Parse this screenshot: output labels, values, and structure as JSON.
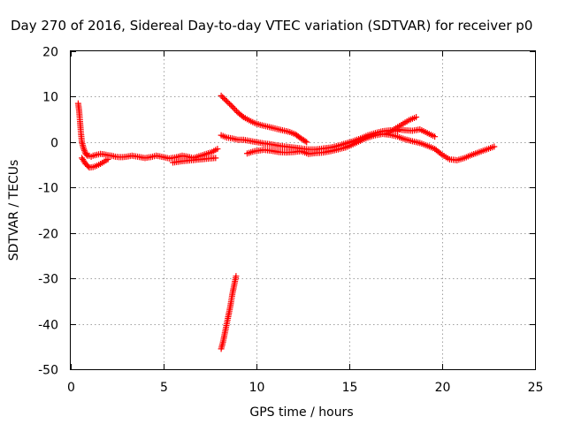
{
  "chart_data": {
    "type": "scatter",
    "title": "Day 270 of 2016, Sidereal Day-to-day VTEC variation (SDTVAR) for receiver p0",
    "xlabel": "GPS time / hours",
    "ylabel": "SDTVAR / TECUs",
    "xlim": [
      0,
      25
    ],
    "ylim": [
      -50,
      20
    ],
    "x_ticks": [
      "0",
      "5",
      "10",
      "15",
      "20",
      "25"
    ],
    "y_ticks": [
      "20",
      "10",
      "0",
      "-10",
      "-20",
      "-30",
      "-40",
      "-50"
    ],
    "grid": true,
    "marker": "plus",
    "color": "#ff0000",
    "series": [
      {
        "x": [
          0.4,
          0.45,
          0.5,
          0.55,
          0.6,
          0.7,
          0.8,
          0.9,
          1.0,
          1.1,
          1.2,
          1.4,
          1.6,
          1.8,
          2.0,
          2.2,
          2.4,
          2.6,
          2.8,
          3.0,
          3.3,
          3.6,
          4.0,
          4.3,
          4.6,
          5.0,
          5.3,
          5.6,
          6.0,
          6.3,
          6.6,
          7.0,
          7.3,
          7.6,
          7.9
        ],
        "y": [
          8.5,
          7.0,
          4.5,
          2.0,
          0.0,
          -1.5,
          -2.5,
          -3.0,
          -3.0,
          -3.2,
          -3.0,
          -2.8,
          -2.6,
          -2.7,
          -2.9,
          -3.0,
          -3.2,
          -3.3,
          -3.3,
          -3.2,
          -3.0,
          -3.2,
          -3.5,
          -3.3,
          -3.0,
          -3.3,
          -3.6,
          -3.4,
          -3.0,
          -3.2,
          -3.5,
          -3.0,
          -2.6,
          -2.2,
          -1.5
        ]
      },
      {
        "x": [
          0.6,
          0.8,
          1.0,
          1.2,
          1.4,
          1.6,
          1.8,
          2.0
        ],
        "y": [
          -3.5,
          -4.8,
          -5.6,
          -5.5,
          -5.2,
          -4.8,
          -4.3,
          -3.8
        ]
      },
      {
        "x": [
          5.5,
          6.0,
          6.5,
          7.0,
          7.5,
          7.8
        ],
        "y": [
          -4.5,
          -4.2,
          -4.0,
          -3.8,
          -3.6,
          -3.5
        ]
      },
      {
        "x": [
          8.1,
          8.4,
          8.7,
          9.0,
          9.3,
          9.6,
          9.9,
          10.2,
          10.6,
          11.0,
          11.4,
          11.8,
          12.1,
          12.4,
          12.7
        ],
        "y": [
          10.2,
          9.0,
          7.8,
          6.5,
          5.5,
          4.8,
          4.2,
          3.8,
          3.4,
          3.0,
          2.6,
          2.2,
          1.7,
          0.8,
          0.0
        ]
      },
      {
        "x": [
          8.1,
          8.4,
          8.7,
          9.0,
          9.3,
          9.6,
          10.0,
          10.4,
          10.8,
          11.2,
          11.6,
          12.0,
          12.4,
          12.8,
          13.2,
          13.6,
          14.0,
          14.4,
          14.8,
          15.2,
          15.6,
          16.0,
          16.4,
          16.8,
          17.2,
          17.6
        ],
        "y": [
          1.5,
          1.0,
          0.8,
          0.5,
          0.5,
          0.3,
          0.0,
          -0.3,
          -0.5,
          -0.8,
          -1.0,
          -1.2,
          -1.4,
          -1.6,
          -1.6,
          -1.4,
          -1.2,
          -0.8,
          -0.3,
          0.2,
          0.8,
          1.5,
          2.0,
          2.4,
          2.6,
          2.4
        ]
      },
      {
        "x": [
          9.5,
          9.9,
          10.4,
          10.8,
          11.2,
          11.6,
          12.0,
          12.4,
          12.8,
          13.2,
          13.6,
          14.0,
          14.4,
          14.8,
          15.2,
          15.6,
          16.0,
          16.4,
          16.8,
          17.2,
          17.6,
          18.0,
          18.4,
          18.8,
          19.2,
          19.6,
          20.0,
          20.4,
          20.8,
          21.2,
          21.6,
          22.0,
          22.4,
          22.8
        ],
        "y": [
          -2.5,
          -2.0,
          -1.7,
          -1.9,
          -2.2,
          -2.3,
          -2.2,
          -2.0,
          -2.6,
          -2.4,
          -2.3,
          -2.0,
          -1.6,
          -1.2,
          -0.5,
          0.3,
          1.0,
          1.5,
          1.8,
          1.6,
          1.2,
          0.6,
          0.2,
          -0.2,
          -0.8,
          -1.5,
          -2.8,
          -3.8,
          -4.0,
          -3.5,
          -2.8,
          -2.2,
          -1.6,
          -1.0
        ]
      },
      {
        "x": [
          17.0,
          17.4,
          17.8,
          18.2,
          18.6
        ],
        "y": [
          1.8,
          2.8,
          3.8,
          4.8,
          5.5
        ]
      },
      {
        "x": [
          17.6,
          18.0,
          18.4,
          18.8,
          19.2,
          19.6
        ],
        "y": [
          2.8,
          2.6,
          2.5,
          2.8,
          2.0,
          1.2
        ]
      },
      {
        "x": [
          8.1,
          8.2,
          8.3,
          8.4,
          8.5,
          8.6,
          8.7,
          8.8,
          8.9
        ],
        "y": [
          -45.5,
          -44.0,
          -42.0,
          -40.0,
          -38.0,
          -36.0,
          -33.5,
          -31.5,
          -29.5
        ]
      }
    ]
  }
}
